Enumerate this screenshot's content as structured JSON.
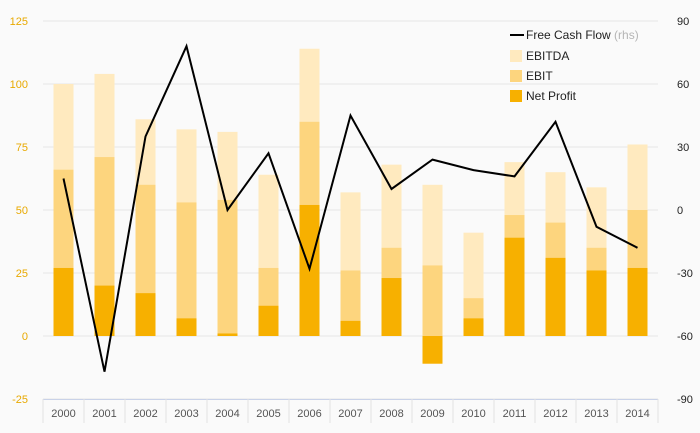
{
  "chart_data": {
    "type": "bar",
    "categories": [
      "2000",
      "2001",
      "2002",
      "2003",
      "2004",
      "2005",
      "2006",
      "2007",
      "2008",
      "2009",
      "2010",
      "2011",
      "2012",
      "2013",
      "2014"
    ],
    "series": [
      {
        "name": "EBITDA",
        "color": "#ffeabf",
        "values": [
          100,
          104,
          86,
          82,
          81,
          64,
          114,
          57,
          68,
          60,
          41,
          69,
          65,
          59,
          76
        ]
      },
      {
        "name": "EBIT",
        "color": "#fdd57e",
        "values": [
          66,
          71,
          60,
          53,
          54,
          27,
          85,
          26,
          35,
          28,
          15,
          48,
          45,
          35,
          50
        ]
      },
      {
        "name": "Net Profit",
        "color": "#f7b000",
        "values": [
          27,
          20,
          17,
          7,
          1,
          12,
          52,
          6,
          23,
          -11,
          7,
          39,
          31,
          26,
          27
        ]
      }
    ],
    "line_series": {
      "name": "Free Cash Flow",
      "suffix": "(rhs)",
      "color": "#000000",
      "axis": "right",
      "values": [
        15,
        -77,
        35,
        78,
        0,
        27,
        -28,
        45,
        10,
        24,
        19,
        16,
        42,
        -8,
        -18
      ]
    },
    "left_axis": {
      "min": -25,
      "max": 125,
      "ticks": [
        "-25",
        "0",
        "25",
        "50",
        "75",
        "100",
        "125"
      ],
      "color": "#e8a900"
    },
    "right_axis": {
      "min": -90,
      "max": 90,
      "ticks": [
        "-90",
        "-60",
        "-30",
        "0",
        "30",
        "60",
        "90"
      ]
    },
    "grid": true,
    "legend_position": "top-right"
  }
}
